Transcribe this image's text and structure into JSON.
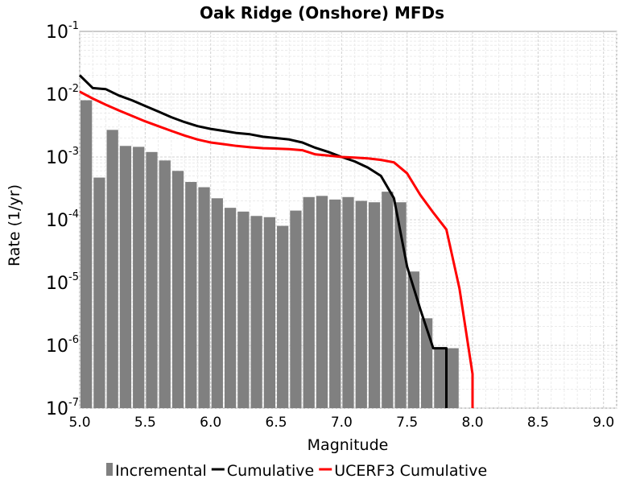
{
  "chart_data": {
    "type": "bar",
    "title": "Oak Ridge (Onshore) MFDs",
    "xlabel": "Magnitude",
    "ylabel": "Rate (1/yr)",
    "x_scale": "linear",
    "y_scale": "log",
    "xlim": [
      5.0,
      9.1
    ],
    "ylim": [
      1e-07,
      0.1
    ],
    "x_ticks": [
      "5.0",
      "5.5",
      "6.0",
      "6.5",
      "7.0",
      "7.5",
      "8.0",
      "8.5",
      "9.0"
    ],
    "y_ticks": [
      {
        "base": "10",
        "exp": "-1",
        "value": 0.1
      },
      {
        "base": "10",
        "exp": "-2",
        "value": 0.01
      },
      {
        "base": "10",
        "exp": "-3",
        "value": 0.001
      },
      {
        "base": "10",
        "exp": "-4",
        "value": 0.0001
      },
      {
        "base": "10",
        "exp": "-5",
        "value": 1e-05
      },
      {
        "base": "10",
        "exp": "-6",
        "value": 1e-06
      },
      {
        "base": "10",
        "exp": "-7",
        "value": 1e-07
      }
    ],
    "grid": true,
    "legend_position": "bottom",
    "series": [
      {
        "name": "Incremental",
        "type": "bar",
        "color": "#808080",
        "x": [
          5.05,
          5.15,
          5.25,
          5.35,
          5.45,
          5.55,
          5.65,
          5.75,
          5.85,
          5.95,
          6.05,
          6.15,
          6.25,
          6.35,
          6.45,
          6.55,
          6.65,
          6.75,
          6.85,
          6.95,
          7.05,
          7.15,
          7.25,
          7.35,
          7.45,
          7.55,
          7.65,
          7.75,
          7.85
        ],
        "y": [
          0.008,
          0.00047,
          0.0027,
          0.0015,
          0.00145,
          0.0012,
          0.00088,
          0.0006,
          0.0004,
          0.00033,
          0.00022,
          0.000155,
          0.000135,
          0.000115,
          0.00011,
          8e-05,
          0.00014,
          0.00023,
          0.00024,
          0.00021,
          0.00023,
          0.0002,
          0.00019,
          0.00028,
          0.00019,
          1.5e-05,
          2.7e-06,
          9e-07,
          9e-07
        ]
      },
      {
        "name": "Cumulative",
        "type": "line",
        "color": "#000000",
        "x": [
          5.0,
          5.1,
          5.2,
          5.3,
          5.4,
          5.5,
          5.6,
          5.7,
          5.8,
          5.9,
          6.0,
          6.1,
          6.2,
          6.3,
          6.4,
          6.5,
          6.6,
          6.7,
          6.8,
          6.9,
          7.0,
          7.1,
          7.2,
          7.3,
          7.4,
          7.5,
          7.6,
          7.7,
          7.8,
          7.8
        ],
        "y": [
          0.02,
          0.0125,
          0.012,
          0.0095,
          0.008,
          0.0065,
          0.0053,
          0.0043,
          0.0036,
          0.0031,
          0.0028,
          0.0026,
          0.0024,
          0.0023,
          0.0021,
          0.002,
          0.0019,
          0.0017,
          0.0014,
          0.0012,
          0.001,
          0.00085,
          0.00068,
          0.0005,
          0.00022,
          1.8e-05,
          3.8e-06,
          9e-07,
          9e-07,
          1e-07
        ]
      },
      {
        "name": "UCERF3 Cumulative",
        "type": "line",
        "color": "#ff0000",
        "x": [
          5.0,
          5.1,
          5.2,
          5.3,
          5.4,
          5.5,
          5.6,
          5.7,
          5.8,
          5.9,
          6.0,
          6.1,
          6.2,
          6.3,
          6.4,
          6.5,
          6.6,
          6.7,
          6.8,
          6.9,
          7.0,
          7.1,
          7.2,
          7.3,
          7.4,
          7.5,
          7.6,
          7.7,
          7.8,
          7.9,
          8.0,
          8.0
        ],
        "y": [
          0.011,
          0.0085,
          0.0068,
          0.0055,
          0.0045,
          0.0037,
          0.0031,
          0.0026,
          0.0022,
          0.0019,
          0.0017,
          0.0016,
          0.0015,
          0.00143,
          0.00138,
          0.00136,
          0.00133,
          0.00128,
          0.0011,
          0.00105,
          0.001,
          0.00098,
          0.00095,
          0.0009,
          0.00082,
          0.00055,
          0.00025,
          0.00013,
          7e-05,
          8e-06,
          3.5e-07,
          1e-07
        ]
      }
    ]
  }
}
